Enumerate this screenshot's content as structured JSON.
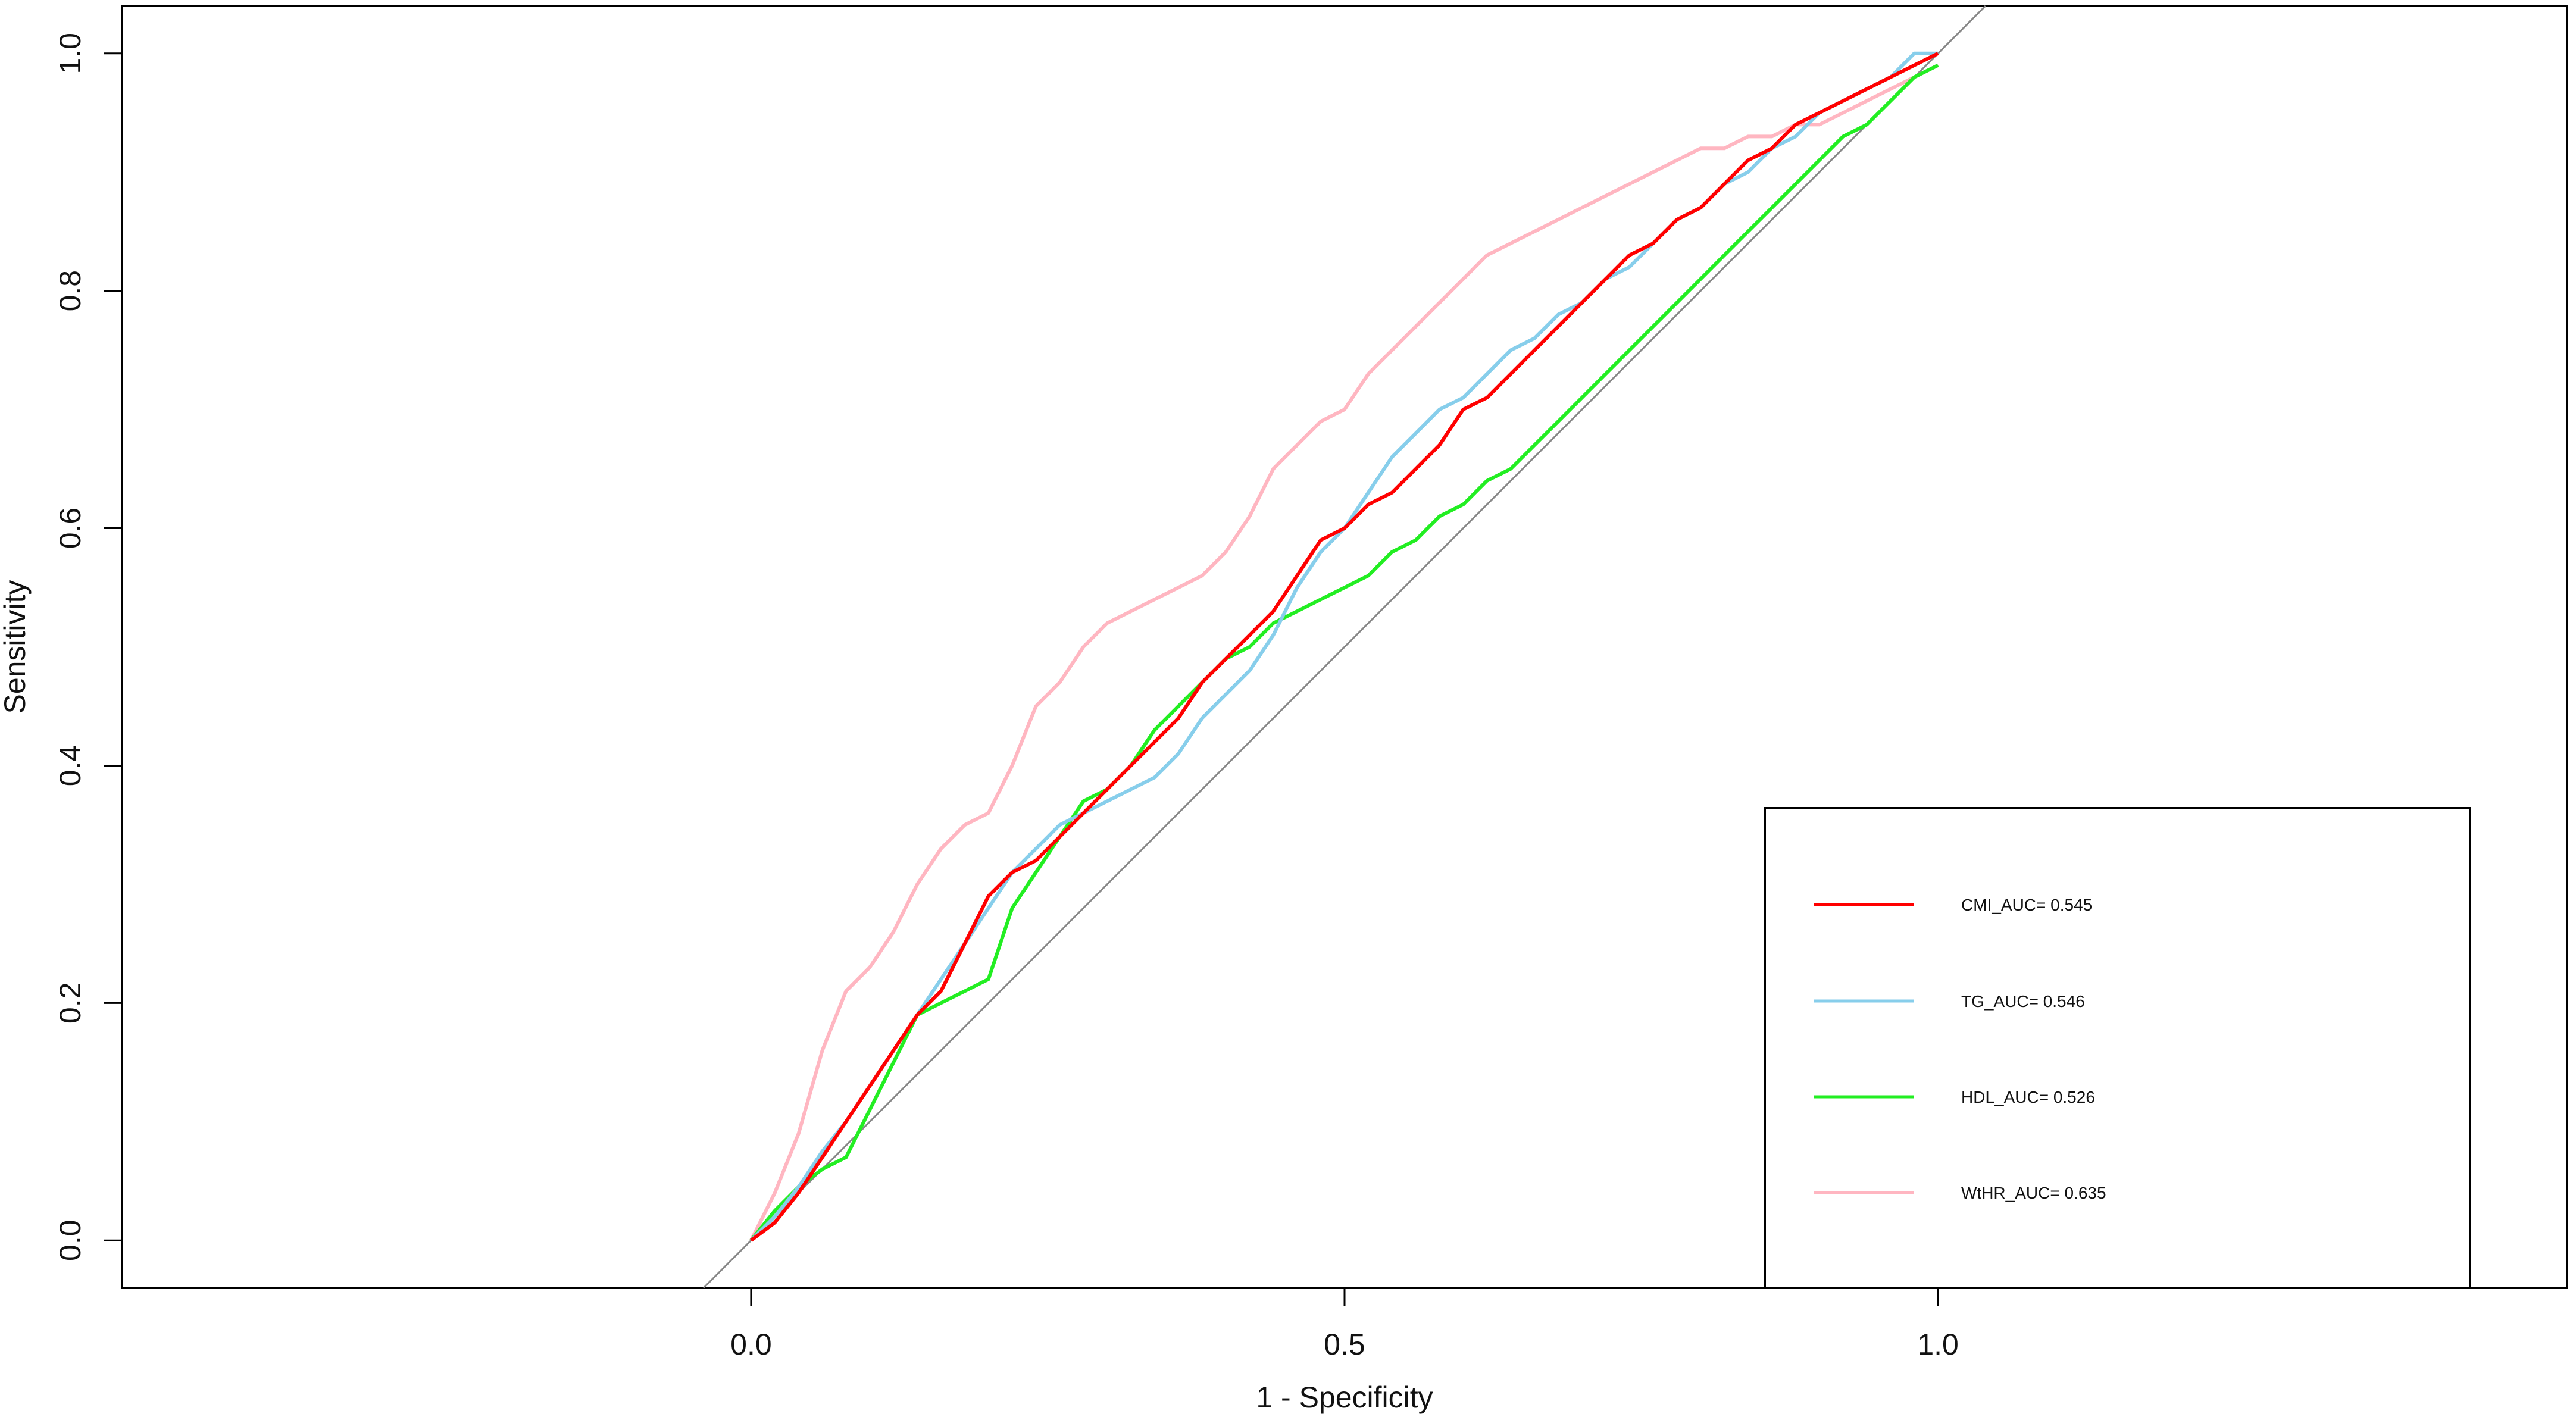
{
  "chart_data": {
    "type": "line",
    "title": "",
    "xlabel": "1 - Specificity",
    "ylabel": "Sensitivity",
    "xlim": [
      -0.53,
      1.53
    ],
    "ylim": [
      -0.04,
      1.04
    ],
    "xticks": [
      0.0,
      0.5,
      1.0
    ],
    "xtick_labels": [
      "0.0",
      "0.5",
      "1.0"
    ],
    "yticks": [
      0.0,
      0.2,
      0.4,
      0.6,
      0.8,
      1.0
    ],
    "ytick_labels": [
      "0.0",
      "0.2",
      "0.4",
      "0.6",
      "0.8",
      "1.0"
    ],
    "grid": false,
    "legend_position": "bottom-right",
    "reference_line": {
      "color": "#888888",
      "x": [
        -0.04,
        1.04
      ],
      "y": [
        -0.04,
        1.04
      ]
    },
    "series": [
      {
        "name": "CMI_AUC= 0.545",
        "color": "#ff0000",
        "x": [
          0,
          0.02,
          0.04,
          0.06,
          0.08,
          0.1,
          0.12,
          0.14,
          0.16,
          0.18,
          0.2,
          0.22,
          0.24,
          0.26,
          0.28,
          0.3,
          0.32,
          0.34,
          0.36,
          0.38,
          0.4,
          0.42,
          0.44,
          0.46,
          0.48,
          0.5,
          0.52,
          0.54,
          0.56,
          0.58,
          0.6,
          0.62,
          0.64,
          0.66,
          0.68,
          0.7,
          0.72,
          0.74,
          0.76,
          0.78,
          0.8,
          0.82,
          0.84,
          0.86,
          0.88,
          0.9,
          0.92,
          0.94,
          0.96,
          0.98,
          1.0
        ],
        "y": [
          0,
          0.015,
          0.04,
          0.07,
          0.1,
          0.13,
          0.16,
          0.19,
          0.21,
          0.25,
          0.29,
          0.31,
          0.32,
          0.34,
          0.36,
          0.38,
          0.4,
          0.42,
          0.44,
          0.47,
          0.49,
          0.51,
          0.53,
          0.56,
          0.59,
          0.6,
          0.62,
          0.63,
          0.65,
          0.67,
          0.7,
          0.71,
          0.73,
          0.75,
          0.77,
          0.79,
          0.81,
          0.83,
          0.84,
          0.86,
          0.87,
          0.89,
          0.91,
          0.92,
          0.94,
          0.95,
          0.96,
          0.97,
          0.98,
          0.99,
          1.0
        ]
      },
      {
        "name": "TG_AUC= 0.546",
        "color": "#87ceeb",
        "x": [
          0,
          0.02,
          0.04,
          0.06,
          0.08,
          0.1,
          0.12,
          0.14,
          0.16,
          0.18,
          0.2,
          0.22,
          0.24,
          0.26,
          0.28,
          0.3,
          0.32,
          0.34,
          0.36,
          0.38,
          0.4,
          0.42,
          0.44,
          0.46,
          0.48,
          0.5,
          0.52,
          0.54,
          0.56,
          0.58,
          0.6,
          0.62,
          0.64,
          0.66,
          0.68,
          0.7,
          0.72,
          0.74,
          0.76,
          0.78,
          0.8,
          0.82,
          0.84,
          0.86,
          0.88,
          0.9,
          0.92,
          0.94,
          0.96,
          0.98,
          1.0
        ],
        "y": [
          0,
          0.02,
          0.045,
          0.075,
          0.1,
          0.13,
          0.16,
          0.19,
          0.22,
          0.25,
          0.28,
          0.31,
          0.33,
          0.35,
          0.36,
          0.37,
          0.38,
          0.39,
          0.41,
          0.44,
          0.46,
          0.48,
          0.51,
          0.55,
          0.58,
          0.6,
          0.63,
          0.66,
          0.68,
          0.7,
          0.71,
          0.73,
          0.75,
          0.76,
          0.78,
          0.79,
          0.81,
          0.82,
          0.84,
          0.86,
          0.87,
          0.89,
          0.9,
          0.92,
          0.93,
          0.95,
          0.96,
          0.97,
          0.98,
          1.0,
          1.0
        ]
      },
      {
        "name": "HDL_AUC= 0.526",
        "color": "#22ee22",
        "x": [
          0,
          0.02,
          0.04,
          0.06,
          0.08,
          0.1,
          0.12,
          0.14,
          0.16,
          0.18,
          0.2,
          0.22,
          0.24,
          0.26,
          0.28,
          0.3,
          0.32,
          0.34,
          0.36,
          0.38,
          0.4,
          0.42,
          0.44,
          0.46,
          0.48,
          0.5,
          0.52,
          0.54,
          0.56,
          0.58,
          0.6,
          0.62,
          0.64,
          0.66,
          0.68,
          0.7,
          0.72,
          0.74,
          0.76,
          0.78,
          0.8,
          0.82,
          0.84,
          0.86,
          0.88,
          0.9,
          0.92,
          0.94,
          0.96,
          0.98,
          1.0
        ],
        "y": [
          0,
          0.025,
          0.045,
          0.06,
          0.07,
          0.11,
          0.15,
          0.19,
          0.2,
          0.21,
          0.22,
          0.28,
          0.31,
          0.34,
          0.37,
          0.38,
          0.4,
          0.43,
          0.45,
          0.47,
          0.49,
          0.5,
          0.52,
          0.53,
          0.54,
          0.55,
          0.56,
          0.58,
          0.59,
          0.61,
          0.62,
          0.64,
          0.65,
          0.67,
          0.69,
          0.71,
          0.73,
          0.75,
          0.77,
          0.79,
          0.81,
          0.83,
          0.85,
          0.87,
          0.89,
          0.91,
          0.93,
          0.94,
          0.96,
          0.98,
          0.99
        ]
      },
      {
        "name": "WtHR_AUC= 0.635",
        "color": "#ffb6c1",
        "x": [
          0,
          0.02,
          0.04,
          0.06,
          0.08,
          0.1,
          0.12,
          0.14,
          0.16,
          0.18,
          0.2,
          0.22,
          0.24,
          0.26,
          0.28,
          0.3,
          0.32,
          0.34,
          0.36,
          0.38,
          0.4,
          0.42,
          0.44,
          0.46,
          0.48,
          0.5,
          0.52,
          0.54,
          0.56,
          0.58,
          0.6,
          0.62,
          0.64,
          0.66,
          0.68,
          0.7,
          0.72,
          0.74,
          0.76,
          0.78,
          0.8,
          0.82,
          0.84,
          0.86,
          0.88,
          0.9,
          0.92,
          0.94,
          0.96,
          0.98,
          1.0
        ],
        "y": [
          0,
          0.04,
          0.09,
          0.16,
          0.21,
          0.23,
          0.26,
          0.3,
          0.33,
          0.35,
          0.36,
          0.4,
          0.45,
          0.47,
          0.5,
          0.52,
          0.53,
          0.54,
          0.55,
          0.56,
          0.58,
          0.61,
          0.65,
          0.67,
          0.69,
          0.7,
          0.73,
          0.75,
          0.77,
          0.79,
          0.81,
          0.83,
          0.84,
          0.85,
          0.86,
          0.87,
          0.88,
          0.89,
          0.9,
          0.91,
          0.92,
          0.92,
          0.93,
          0.93,
          0.94,
          0.94,
          0.95,
          0.96,
          0.97,
          0.98,
          0.99
        ]
      }
    ]
  }
}
